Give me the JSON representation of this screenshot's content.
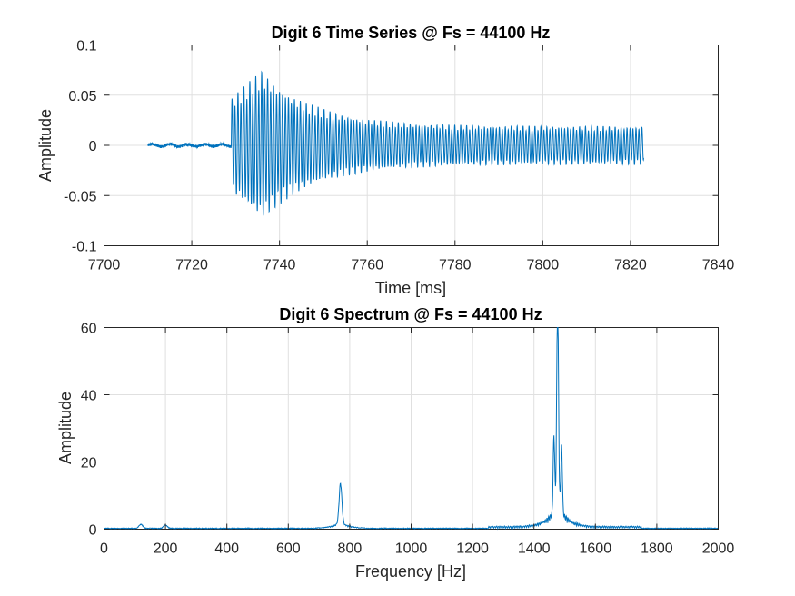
{
  "chart_data": [
    {
      "type": "line",
      "title": "Digit 6 Time Series @ Fs = 44100 Hz",
      "xlabel": "Time [ms]",
      "ylabel": "Amplitude",
      "xlim": [
        7700,
        7840
      ],
      "ylim": [
        -0.1,
        0.1
      ],
      "xticks": [
        7700,
        7720,
        7740,
        7760,
        7780,
        7800,
        7820,
        7840
      ],
      "yticks": [
        -0.1,
        -0.05,
        0,
        0.05,
        0.1
      ],
      "xtick_labels": [
        "7700",
        "7720",
        "7740",
        "7760",
        "7780",
        "7800",
        "7820",
        "7840"
      ],
      "ytick_labels": [
        "-0.1",
        "-0.05",
        "0",
        "0.05",
        "0.1"
      ],
      "grid": true,
      "series_color": "#0072bd",
      "signal": {
        "t_start": 7710,
        "t_onset": 7729,
        "t_peak": 7736,
        "t_end": 7823,
        "pre_noise": 0.003,
        "peak_amplitude": 0.075,
        "steady_amplitude": 0.019,
        "low_freq_hz": 770,
        "high_freq_hz": 1477
      }
    },
    {
      "type": "line",
      "title": "Digit 6 Spectrum @ Fs = 44100 Hz",
      "xlabel": "Frequency [Hz]",
      "ylabel": "Amplitude",
      "xlim": [
        0,
        2000
      ],
      "ylim": [
        0,
        60
      ],
      "xticks": [
        0,
        200,
        400,
        600,
        800,
        1000,
        1200,
        1400,
        1600,
        1800,
        2000
      ],
      "yticks": [
        0,
        20,
        40,
        60
      ],
      "xtick_labels": [
        "0",
        "200",
        "400",
        "600",
        "800",
        "1000",
        "1200",
        "1400",
        "1600",
        "1800",
        "2000"
      ],
      "ytick_labels": [
        "0",
        "20",
        "40",
        "60"
      ],
      "grid": true,
      "series_color": "#0072bd",
      "peaks": [
        {
          "frequency": 120,
          "amplitude": 1.2
        },
        {
          "frequency": 200,
          "amplitude": 1.0
        },
        {
          "frequency": 770,
          "amplitude": 11.5
        },
        {
          "frequency": 1465,
          "amplitude": 23
        },
        {
          "frequency": 1477,
          "amplitude": 60
        },
        {
          "frequency": 1490,
          "amplitude": 19.5
        }
      ]
    }
  ]
}
